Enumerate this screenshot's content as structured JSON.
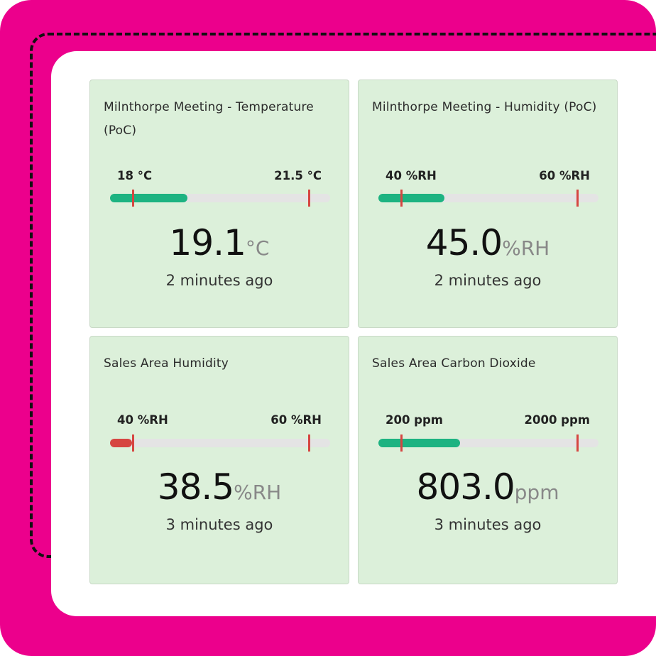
{
  "colors": {
    "frame": "#ec008c",
    "card": "#dcf0da",
    "ok": "#1db381",
    "low": "#d64541",
    "marker": "#d64541"
  },
  "cards": [
    {
      "title": "Milnthorpe Meeting - Temperature (PoC)",
      "min_label": "18 °C",
      "max_label": "21.5 °C",
      "value": "19.1",
      "unit": "°C",
      "timestamp": "2 minutes ago",
      "fill_fraction": 0.35,
      "status": "ok"
    },
    {
      "title": "Milnthorpe Meeting - Humidity (PoC)",
      "min_label": "40 %RH",
      "max_label": "60 %RH",
      "value": "45.0",
      "unit": "%RH",
      "timestamp": "2 minutes ago",
      "fill_fraction": 0.3,
      "status": "ok"
    },
    {
      "title": "Sales Area Humidity",
      "min_label": "40 %RH",
      "max_label": "60 %RH",
      "value": "38.5",
      "unit": "%RH",
      "timestamp": "3 minutes ago",
      "fill_fraction": 0.1,
      "status": "low"
    },
    {
      "title": "Sales Area Carbon Dioxide",
      "min_label": "200 ppm",
      "max_label": "2000 ppm",
      "value": "803.0",
      "unit": "ppm",
      "timestamp": "3 minutes ago",
      "fill_fraction": 0.37,
      "status": "ok"
    }
  ]
}
